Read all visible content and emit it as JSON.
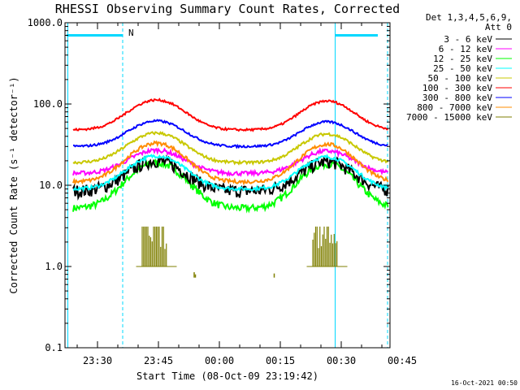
{
  "chart_data": {
    "type": "line",
    "title": "RHESSI Observing Summary Count Rates, Corrected",
    "xlabel": "Start Time (08-Oct-09 23:19:42)",
    "ylabel": "Corrected Count Rate (s⁻¹ detector⁻¹)",
    "yscale": "log",
    "ylim": [
      0.1,
      1000
    ],
    "xlim_minutes": [
      -8,
      72
    ],
    "y_ticks": [
      "1000.0",
      "100.0",
      "10.0",
      "1.0",
      "0.1"
    ],
    "x_ticks": [
      {
        "label": "23:30",
        "minute": 0
      },
      {
        "label": "23:45",
        "minute": 15
      },
      {
        "label": "00:00",
        "minute": 30
      },
      {
        "label": "00:15",
        "minute": 45
      },
      {
        "label": "00:30",
        "minute": 60
      },
      {
        "label": "00:45",
        "minute": 75
      }
    ],
    "legend_title": [
      "Det 1,3,4,5,6,9,",
      "Att 0"
    ],
    "legend_position": "right",
    "series": [
      {
        "name": "3 - 6 keV",
        "color": "#000000",
        "base": 8.5,
        "peak": 20,
        "noise": 0.18
      },
      {
        "name": "6 - 12 keV",
        "color": "#ff00ff",
        "base": 14,
        "peak": 27,
        "noise": 0.06
      },
      {
        "name": "12 - 25 keV",
        "color": "#00ff00",
        "base": 5.2,
        "peak": 19,
        "noise": 0.1
      },
      {
        "name": "25 - 50 keV",
        "color": "#00ffff",
        "base": 9,
        "peak": 23,
        "noise": 0.05
      },
      {
        "name": "50 - 100 keV",
        "color": "#c8c800",
        "base": 19,
        "peak": 44,
        "noise": 0.04
      },
      {
        "name": "100 - 300 keV",
        "color": "#ff0000",
        "base": 48,
        "peak": 112,
        "noise": 0.03
      },
      {
        "name": "300 - 800 keV",
        "color": "#0000ff",
        "base": 30,
        "peak": 62,
        "noise": 0.03
      },
      {
        "name": "800 - 7000 keV",
        "color": "#ff8c00",
        "base": 11,
        "peak": 33,
        "noise": 0.05
      },
      {
        "name": "7000 - 15000 keV",
        "color": "#7f7f00",
        "base": 1.0,
        "peak": 1.0,
        "noise": 0.0
      }
    ],
    "bursts_7000_15000": [
      {
        "start_minute": 11,
        "end_minute": 17,
        "top": 3.1
      },
      {
        "start_minute": 53,
        "end_minute": 59,
        "top": 3.1
      }
    ],
    "annotations": {
      "flag_N": "N",
      "timestamp": "16-Oct-2021 00:50"
    }
  }
}
